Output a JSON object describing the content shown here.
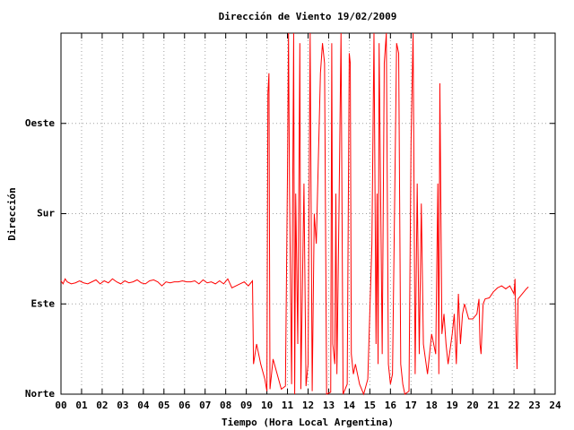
{
  "chart_data": {
    "type": "line",
    "title": "Dirección de Viento 19/02/2009",
    "x_label": "Tiempo (Hora Local Argentina)",
    "y_label": "Dirección",
    "x": [
      0.0,
      0.1,
      0.2,
      0.3,
      0.5,
      0.7,
      0.9,
      1.1,
      1.3,
      1.5,
      1.7,
      1.9,
      2.1,
      2.3,
      2.5,
      2.7,
      2.9,
      3.1,
      3.3,
      3.5,
      3.7,
      3.9,
      4.1,
      4.3,
      4.5,
      4.7,
      4.9,
      5.1,
      5.3,
      5.5,
      5.7,
      5.9,
      6.1,
      6.3,
      6.5,
      6.7,
      6.9,
      7.1,
      7.3,
      7.5,
      7.7,
      7.9,
      8.1,
      8.3,
      8.5,
      8.7,
      8.9,
      9.1,
      9.3,
      9.35,
      9.5,
      9.7,
      9.9,
      10.0,
      10.05,
      10.1,
      10.15,
      10.3,
      10.5,
      10.7,
      10.9,
      11.0,
      11.05,
      11.1,
      11.2,
      11.25,
      11.3,
      11.35,
      11.4,
      11.5,
      11.6,
      11.65,
      11.8,
      11.9,
      12.0,
      12.1,
      12.2,
      12.3,
      12.4,
      12.6,
      12.7,
      12.8,
      12.9,
      13.1,
      13.15,
      13.2,
      13.3,
      13.35,
      13.4,
      13.5,
      13.6,
      13.7,
      13.9,
      14.0,
      14.05,
      14.1,
      14.2,
      14.3,
      14.5,
      14.7,
      14.9,
      15.1,
      15.2,
      15.3,
      15.35,
      15.4,
      15.45,
      15.6,
      15.7,
      15.8,
      15.9,
      16.0,
      16.1,
      16.3,
      16.4,
      16.5,
      16.6,
      16.7,
      16.9,
      17.0,
      17.1,
      17.2,
      17.3,
      17.4,
      17.5,
      17.6,
      17.8,
      18.0,
      18.2,
      18.3,
      18.35,
      18.4,
      18.5,
      18.6,
      18.7,
      18.8,
      19.0,
      19.1,
      19.2,
      19.3,
      19.4,
      19.5,
      19.6,
      19.8,
      20.0,
      20.2,
      20.3,
      20.35,
      20.4,
      20.5,
      20.6,
      20.8,
      21.0,
      21.2,
      21.4,
      21.6,
      21.8,
      21.9,
      22.0,
      22.05,
      22.1,
      22.15,
      22.2,
      22.4,
      22.6,
      22.7
    ],
    "series": [
      {
        "color": "#ff0000",
        "values": [
          113,
          110,
          115,
          112,
          110,
          111,
          113,
          111,
          110,
          112,
          114,
          110,
          113,
          111,
          115,
          112,
          110,
          113,
          111,
          112,
          114,
          111,
          110,
          113,
          114,
          112,
          108,
          112,
          111,
          112,
          112,
          113,
          112,
          112,
          113,
          110,
          114,
          111,
          112,
          110,
          113,
          110,
          115,
          106,
          108,
          110,
          112,
          108,
          113,
          30,
          50,
          30,
          15,
          3,
          300,
          320,
          5,
          35,
          20,
          5,
          8,
          220,
          360,
          200,
          10,
          190,
          360,
          0,
          200,
          50,
          350,
          5,
          210,
          8,
          30,
          360,
          3,
          180,
          150,
          320,
          350,
          330,
          0,
          2,
          350,
          50,
          30,
          200,
          20,
          180,
          360,
          0,
          10,
          340,
          330,
          40,
          20,
          30,
          10,
          0,
          15,
          150,
          360,
          50,
          200,
          30,
          350,
          40,
          330,
          360,
          30,
          10,
          20,
          350,
          340,
          30,
          10,
          0,
          3,
          250,
          360,
          20,
          210,
          40,
          190,
          50,
          20,
          60,
          40,
          210,
          20,
          310,
          60,
          80,
          50,
          30,
          60,
          80,
          30,
          100,
          50,
          80,
          90,
          75,
          75,
          80,
          95,
          50,
          40,
          90,
          95,
          96,
          102,
          106,
          108,
          105,
          108,
          104,
          100,
          115,
          60,
          25,
          95,
          100,
          105,
          107
        ]
      }
    ],
    "xlim": [
      0,
      24
    ],
    "ylim": [
      0,
      360
    ],
    "xticks": [
      {
        "value": 0,
        "label": "00"
      },
      {
        "value": 1,
        "label": "01"
      },
      {
        "value": 2,
        "label": "02"
      },
      {
        "value": 3,
        "label": "03"
      },
      {
        "value": 4,
        "label": "04"
      },
      {
        "value": 5,
        "label": "05"
      },
      {
        "value": 6,
        "label": "06"
      },
      {
        "value": 7,
        "label": "07"
      },
      {
        "value": 8,
        "label": "08"
      },
      {
        "value": 9,
        "label": "09"
      },
      {
        "value": 10,
        "label": "10"
      },
      {
        "value": 11,
        "label": "11"
      },
      {
        "value": 12,
        "label": "12"
      },
      {
        "value": 13,
        "label": "13"
      },
      {
        "value": 14,
        "label": "14"
      },
      {
        "value": 15,
        "label": "15"
      },
      {
        "value": 16,
        "label": "16"
      },
      {
        "value": 17,
        "label": "17"
      },
      {
        "value": 18,
        "label": "18"
      },
      {
        "value": 19,
        "label": "19"
      },
      {
        "value": 20,
        "label": "20"
      },
      {
        "value": 21,
        "label": "21"
      },
      {
        "value": 22,
        "label": "22"
      },
      {
        "value": 23,
        "label": "23"
      },
      {
        "value": 24,
        "label": "24"
      }
    ],
    "yticks": [
      {
        "value": 0,
        "label": "Norte"
      },
      {
        "value": 90,
        "label": "Este"
      },
      {
        "value": 180,
        "label": "Sur"
      },
      {
        "value": 270,
        "label": "Oeste"
      }
    ],
    "grid": true
  }
}
